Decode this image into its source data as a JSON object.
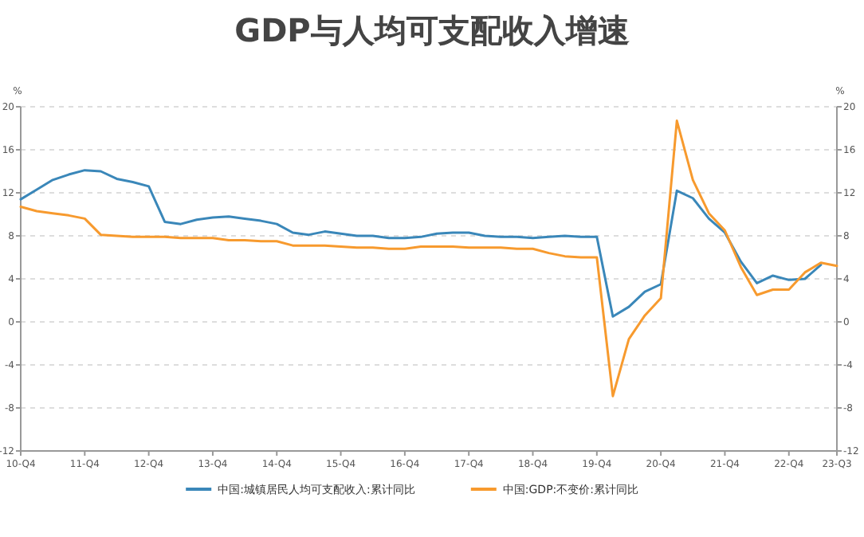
{
  "chart_data": {
    "type": "line",
    "title": "GDP与人均可支配收入增速",
    "ylabel": "%",
    "y2label": "%",
    "categories": [
      "10-Q4",
      null,
      null,
      null,
      "11-Q4",
      null,
      null,
      null,
      "12-Q4",
      null,
      null,
      null,
      "13-Q4",
      null,
      null,
      null,
      "14-Q4",
      null,
      null,
      null,
      "15-Q4",
      null,
      null,
      null,
      "16-Q4",
      null,
      null,
      null,
      "17-Q4",
      null,
      null,
      null,
      "18-Q4",
      null,
      null,
      null,
      "19-Q4",
      null,
      null,
      null,
      "20-Q4",
      null,
      null,
      null,
      "21-Q4",
      null,
      null,
      null,
      "22-Q4",
      null,
      null,
      "23-Q3"
    ],
    "series": [
      {
        "name": "中国:城镇居民人均可支配收入:累计同比",
        "color": "#3a87b9",
        "values": [
          11.4,
          12.3,
          13.2,
          13.7,
          14.1,
          14.0,
          13.3,
          13.0,
          12.6,
          9.3,
          9.1,
          9.5,
          9.7,
          9.8,
          9.6,
          9.4,
          9.1,
          8.3,
          8.1,
          8.4,
          8.2,
          8.0,
          8.0,
          7.8,
          7.8,
          7.9,
          8.2,
          8.3,
          8.3,
          8.0,
          7.9,
          7.9,
          7.8,
          7.9,
          8.0,
          7.9,
          7.9,
          0.5,
          1.4,
          2.8,
          3.5,
          12.2,
          11.5,
          9.6,
          8.3,
          5.6,
          3.6,
          4.3,
          3.9,
          4.0,
          5.3,
          null
        ]
      },
      {
        "name": "中国:GDP:不变价:累计同比",
        "color": "#f79a2e",
        "values": [
          10.7,
          10.3,
          10.1,
          9.9,
          9.6,
          8.1,
          8.0,
          7.9,
          7.9,
          7.9,
          7.8,
          7.8,
          7.8,
          7.6,
          7.6,
          7.5,
          7.5,
          7.1,
          7.1,
          7.1,
          7.0,
          6.9,
          6.9,
          6.8,
          6.8,
          7.0,
          7.0,
          7.0,
          6.9,
          6.9,
          6.9,
          6.8,
          6.8,
          6.4,
          6.1,
          6.0,
          6.0,
          -6.9,
          -1.6,
          0.6,
          2.2,
          18.7,
          13.2,
          10.1,
          8.5,
          5.1,
          2.5,
          3.0,
          3.0,
          4.6,
          5.5,
          5.2
        ]
      }
    ],
    "ylim": [
      -12,
      20
    ],
    "yticks": [
      -12,
      -8,
      -4,
      0,
      4,
      8,
      12,
      16,
      20
    ],
    "y2lim": [
      -12,
      20
    ],
    "y2ticks": [
      -12,
      -8,
      -4,
      0,
      4,
      8,
      12,
      16,
      20
    ],
    "grid": "y",
    "legend": "bottom",
    "marker": "none",
    "line_style": "solid"
  }
}
